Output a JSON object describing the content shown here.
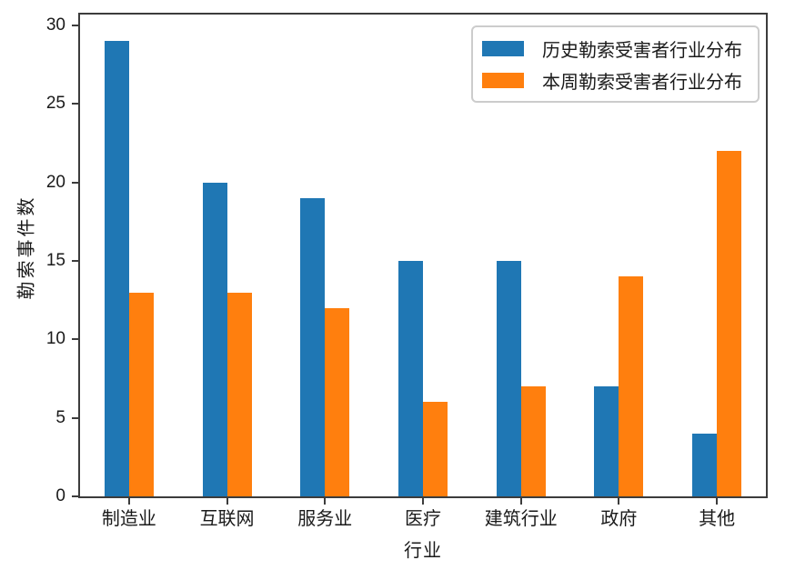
{
  "chart_data": {
    "type": "bar",
    "title": "",
    "categories": [
      "制造业",
      "互联网",
      "服务业",
      "医疗",
      "建筑行业",
      "政府",
      "其他"
    ],
    "series": [
      {
        "name": "历史勒索受害者行业分布",
        "color": "#1f77b4",
        "values": [
          29,
          20,
          19,
          15,
          15,
          7,
          4
        ]
      },
      {
        "name": "本周勒索受害者行业分布",
        "color": "#ff7f0e",
        "values": [
          13,
          13,
          12,
          6,
          7,
          14,
          22
        ]
      }
    ],
    "xlabel": "行业",
    "ylabel": "勒索事件数",
    "yticks": [
      0,
      5,
      10,
      15,
      20,
      25,
      30
    ],
    "ylim": [
      0,
      30.7
    ],
    "grid": false,
    "legend_position": "upper right"
  },
  "colors": {
    "spine": "#3c3c3c",
    "text": "#1a1a1a",
    "legend_border": "#cccccc",
    "background": "#ffffff"
  }
}
